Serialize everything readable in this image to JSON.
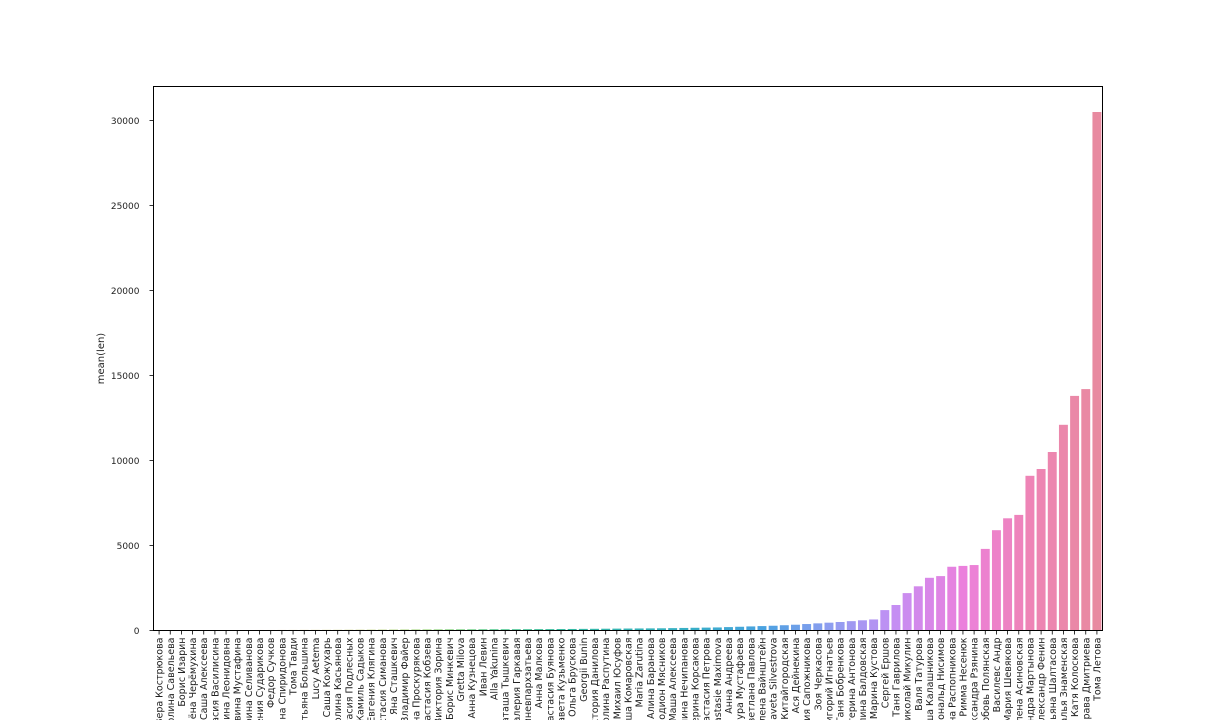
{
  "chart_data": {
    "type": "bar",
    "title": "",
    "xlabel": "",
    "ylabel": "mean(len)",
    "ylim": [
      0,
      32000
    ],
    "yticks": [
      0,
      5000,
      10000,
      15000,
      20000,
      25000,
      30000
    ],
    "grid": false,
    "legend": "none",
    "palette": [
      "#f48a8a",
      "#f0a03c",
      "#cdb032",
      "#a6bb32",
      "#62c232",
      "#32c07a",
      "#33baa0",
      "#35b5b7",
      "#38aec8",
      "#4aa2e0",
      "#8d9df0",
      "#c58ef3",
      "#eb80dc",
      "#ee84b6",
      "#e88aa0"
    ],
    "categories": [
      "Вера Кострюкова",
      "Полина Савельева",
      "Борис Изарин",
      "Алёна Черёмухина",
      "Саша Алексеева",
      "Анастасия Василисина",
      "Полина Леонидовна",
      "Эльвина Мустафина",
      "Марина Селиванова",
      "Евгения Сударикова",
      "Федор Сучков",
      "Светлана Спиридонова",
      "Тома Тавди",
      "Татьяна Большина",
      "Lucy Aetema",
      "Саша Кожухарь",
      "Полина Касьянова",
      "Анастасия Подлесных",
      "Камиль Садыков",
      "Евгения Клягина",
      "Анастасия Симанова",
      "Яна Сташкевич",
      "Владимир Файер",
      "Анна Проскурякова",
      "Анастасия Кобзева",
      "Виктория Зорина",
      "Борис Минкевич",
      "Gretta Milova",
      "Анна Кузнецова",
      "Иван Левин",
      "Alla Yakunina",
      "Наташа Тышкевич",
      "Валерия Гаркавая",
      "Аминевпархзатьева",
      "Анна Малкова",
      "Анастасия Буянова",
      "Елизавета Кузьменко",
      "Ольга Брускова",
      "Georgii Bunin",
      "Виктория Данилова",
      "Полина Распутина",
      "Михаил Юсуфов",
      "Маша Комаровская",
      "Maria Zarutina",
      "Алина Баранова",
      "Родион Мясников",
      "Маша Алексеева",
      "Полина Нечипанова",
      "Екатерина Корсакова",
      "Анастасия Петрова",
      "Anastasie Maximova",
      "Анна Андреева",
      "Лаура Мустафаева",
      "Светлана Павлова",
      "Елена Вайнштейн",
      "Elizaveta Silvestrova",
      "Китайгородская",
      "Ася Дейнекина",
      "Мария Сапожникова",
      "Зоя Черкасова",
      "Григорий Игнатьев",
      "Таня Бобренкова",
      "Екатерина Антонова",
      "Полина Балдовская",
      "Марина Кустова",
      "Сергей Ершов",
      "Таня Гаврилова",
      "Николай Микулин",
      "Валя Татурова",
      "Маша Калашникова",
      "Рональд Нисимов",
      "Ирина Распопникова",
      "Римма Несенюк",
      "Александра Рзянина",
      "Любовь Полянская",
      "Василевс Андр",
      "Мария Шевякова",
      "Елена Асиновская",
      "Сандра Мартынова",
      "Александр Фенин",
      "Татьяна Шалтасова",
      "Наталья Знаменская",
      "Катя Колоскова",
      "Бобрава Дмитриева",
      "Тома Летова"
    ],
    "values": [
      25,
      25,
      26,
      26,
      27,
      27,
      28,
      28,
      29,
      30,
      30,
      31,
      32,
      33,
      34,
      35,
      36,
      38,
      40,
      42,
      44,
      46,
      48,
      50,
      52,
      55,
      58,
      60,
      62,
      65,
      68,
      70,
      72,
      75,
      78,
      80,
      85,
      90,
      95,
      100,
      105,
      110,
      115,
      120,
      125,
      130,
      140,
      150,
      160,
      170,
      180,
      200,
      220,
      240,
      260,
      280,
      310,
      340,
      380,
      420,
      460,
      500,
      550,
      600,
      650,
      1200,
      1500,
      2200,
      2600,
      3100,
      3200,
      3750,
      3800,
      3850,
      4800,
      5900,
      6600,
      6800,
      9100,
      9500,
      10500,
      12100,
      13800,
      14200,
      30500
    ]
  }
}
